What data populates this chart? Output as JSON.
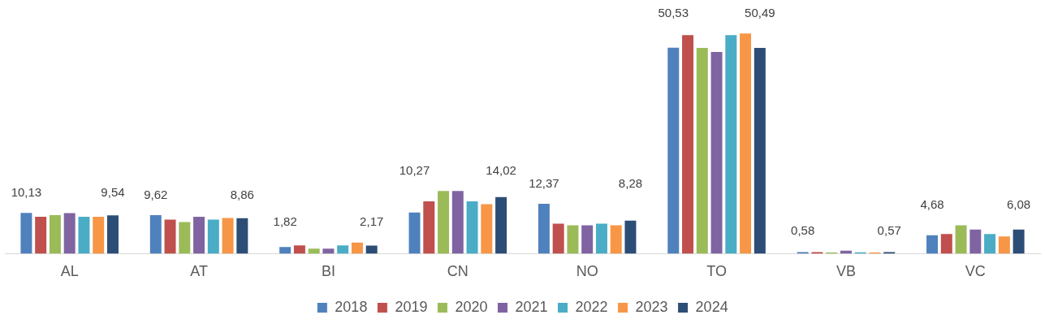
{
  "chart_data": {
    "type": "bar",
    "categories": [
      "AL",
      "AT",
      "BI",
      "CN",
      "NO",
      "TO",
      "VB",
      "VC"
    ],
    "series": [
      {
        "name": "2018",
        "color": "#4f81bd",
        "values": [
          10.13,
          9.62,
          1.82,
          10.27,
          12.37,
          50.53,
          0.58,
          4.68
        ],
        "value_labels": [
          "10,13",
          "9,62",
          "1,82",
          "10,27",
          "12,37",
          "50,53",
          "0,58",
          "4,68"
        ]
      },
      {
        "name": "2019",
        "color": "#c0504d",
        "values": [
          9.2,
          8.5,
          2.2,
          13.0,
          7.5,
          53.6,
          0.58,
          5.0
        ]
      },
      {
        "name": "2020",
        "color": "#9bbb59",
        "values": [
          9.6,
          7.9,
          1.4,
          15.5,
          7.1,
          50.5,
          0.5,
          7.1
        ]
      },
      {
        "name": "2021",
        "color": "#8064a2",
        "values": [
          10.1,
          9.2,
          1.4,
          15.5,
          7.1,
          49.5,
          0.9,
          6.1
        ]
      },
      {
        "name": "2022",
        "color": "#4bacc6",
        "values": [
          9.2,
          8.5,
          2.2,
          13.0,
          7.5,
          53.6,
          0.55,
          5.0
        ]
      },
      {
        "name": "2023",
        "color": "#f79646",
        "values": [
          9.2,
          8.9,
          2.9,
          12.3,
          7.1,
          54.0,
          0.5,
          4.4
        ]
      },
      {
        "name": "2024",
        "color": "#2c4d75",
        "values": [
          9.54,
          8.86,
          2.17,
          14.02,
          8.28,
          50.49,
          0.57,
          6.08
        ],
        "value_labels": [
          "9,54",
          "8,86",
          "2,17",
          "14,02",
          "8,28",
          "50,49",
          "0,57",
          "6,08"
        ]
      }
    ],
    "legend": "bottom",
    "grid": false
  }
}
